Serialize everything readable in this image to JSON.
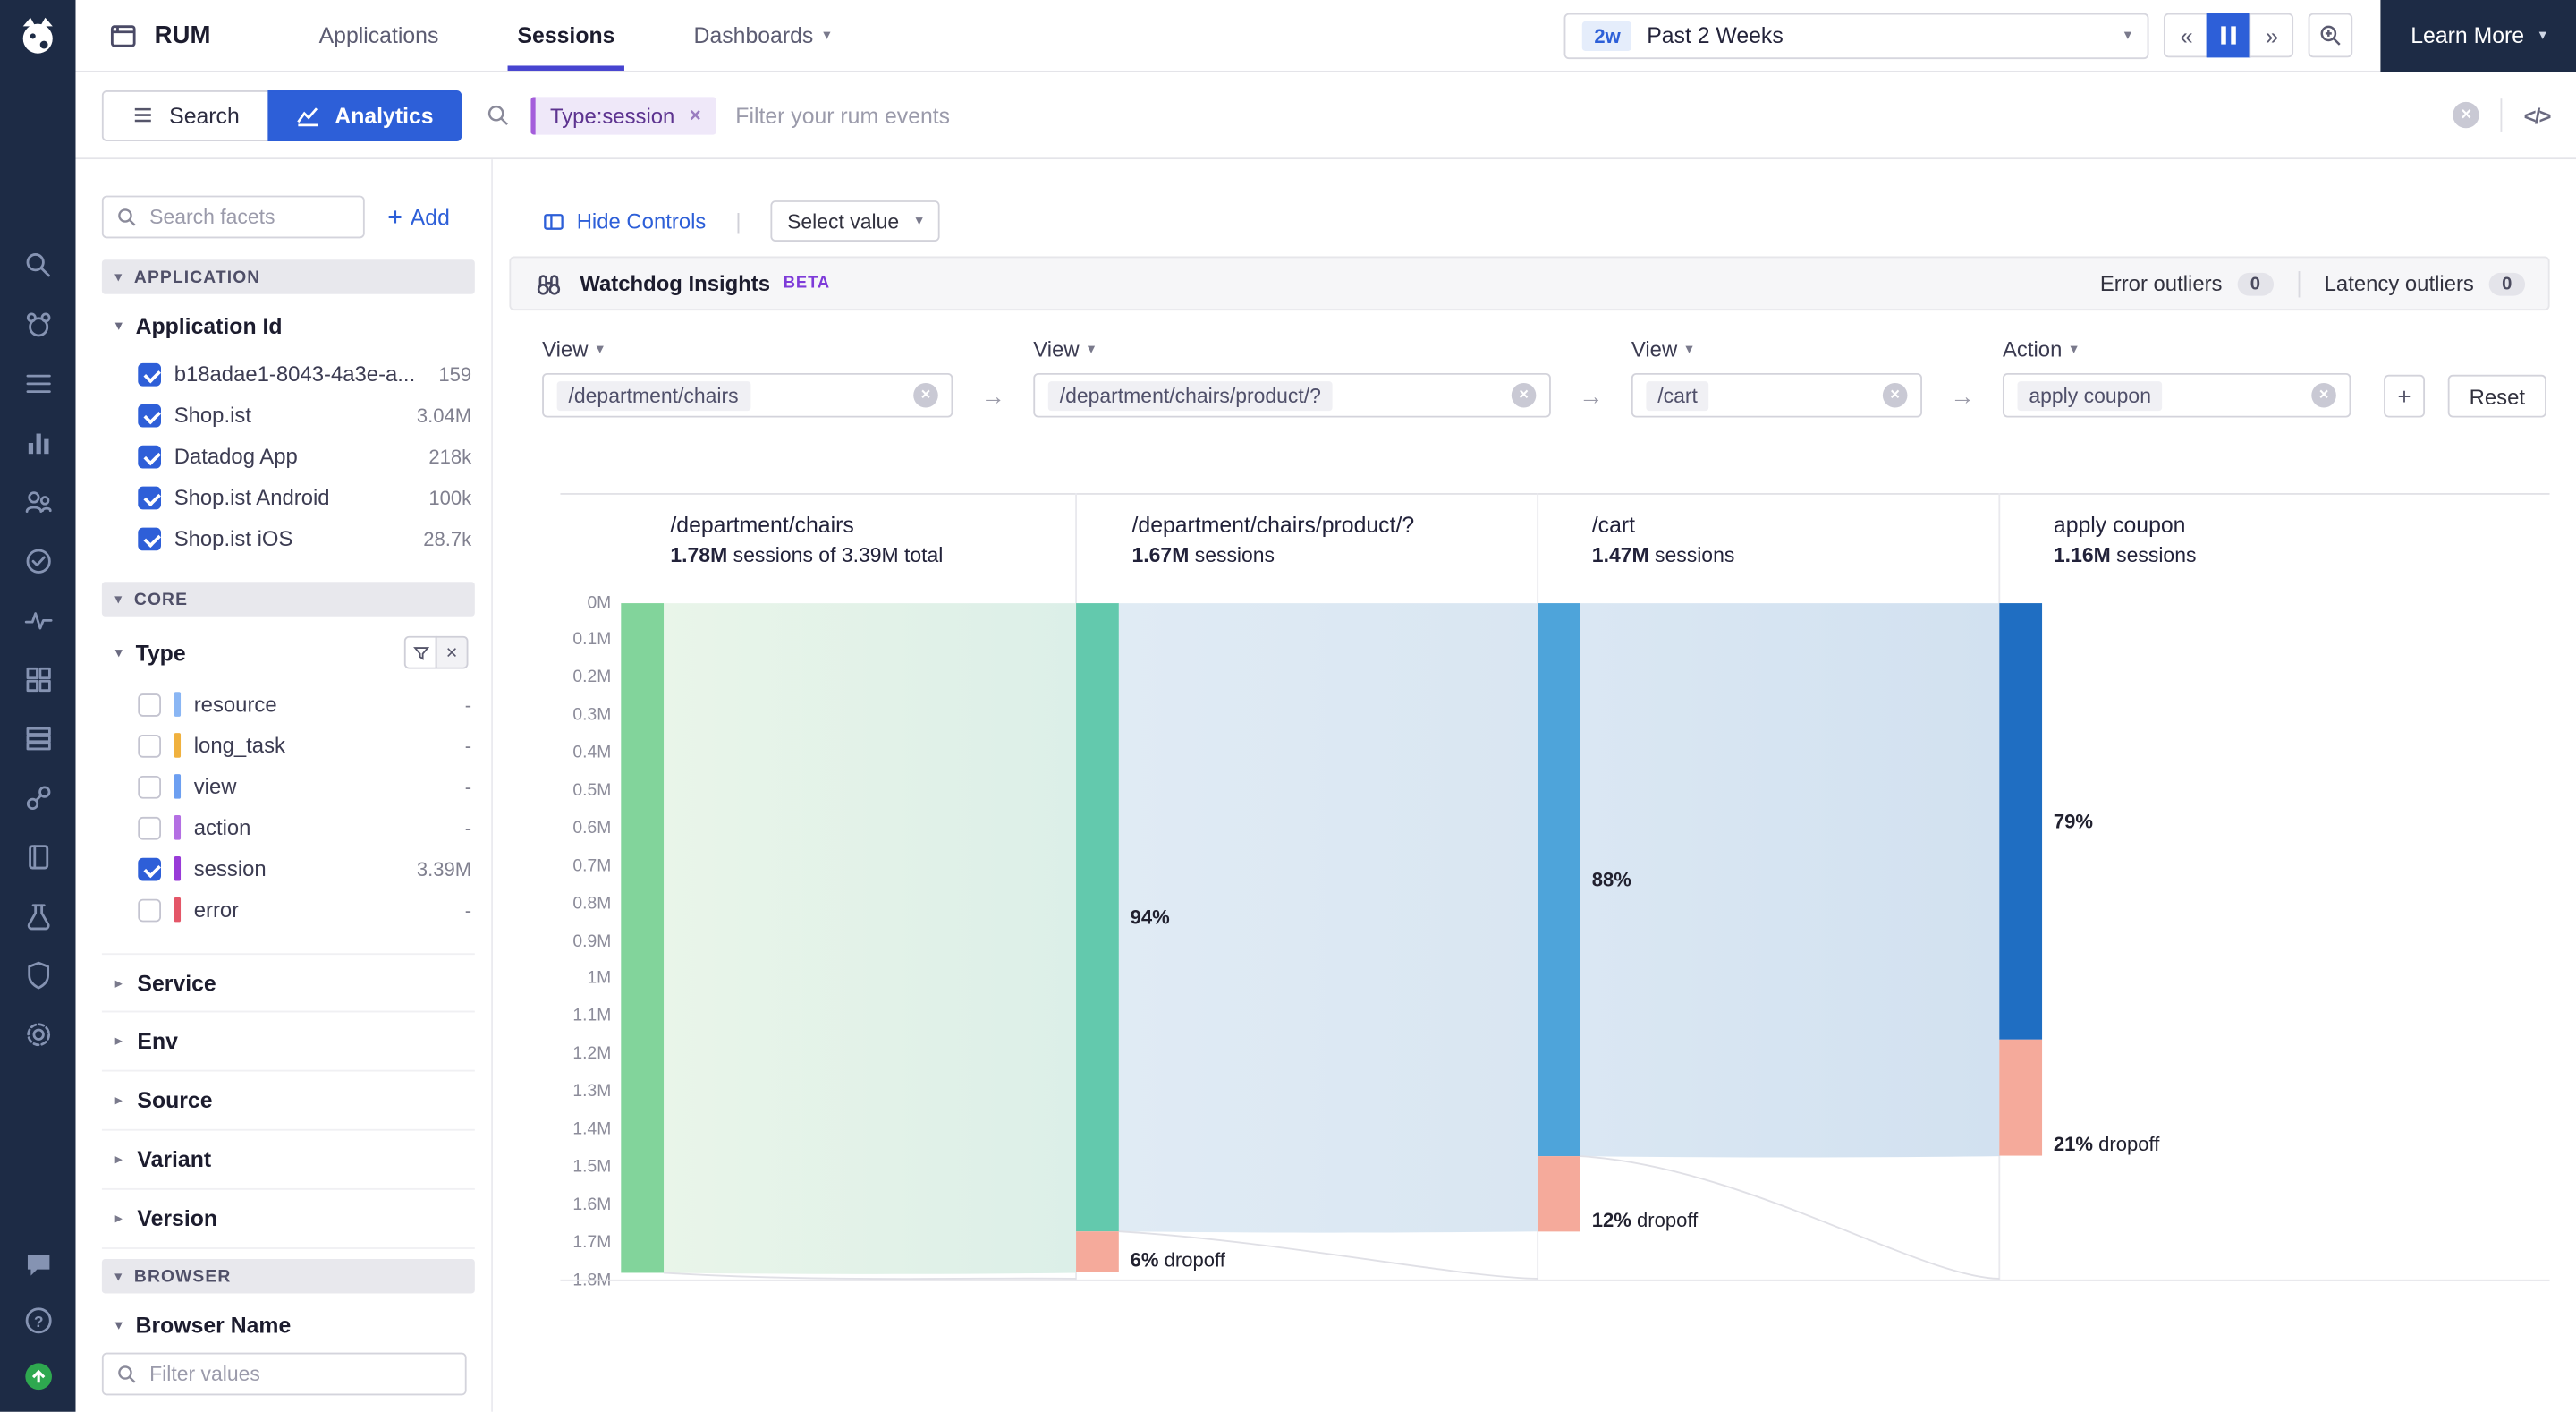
{
  "icons": {
    "caret_down": "▾",
    "chevron_right": "▸",
    "chevron_down": "▾",
    "close": "×",
    "plus": "+",
    "arrow_right": "→",
    "code": "</>",
    "rewind": "«",
    "forward": "»",
    "divider": "|",
    "help": "?"
  },
  "top_nav": {
    "product": "RUM",
    "items": [
      {
        "label": "Applications",
        "active": false
      },
      {
        "label": "Sessions",
        "active": true
      },
      {
        "label": "Dashboards",
        "active": false
      }
    ],
    "time_range": {
      "badge": "2w",
      "label": "Past 2 Weeks"
    },
    "learn_more_label": "Learn More"
  },
  "filter_bar": {
    "search_tab": "Search",
    "analytics_tab": "Analytics",
    "pill": "Type:session",
    "placeholder": "Filter your rum events"
  },
  "facet_panel": {
    "search_placeholder": "Search facets",
    "add_label": "Add",
    "application_header": "APPLICATION",
    "application_group": "Application Id",
    "application_items": [
      {
        "label": "b18adae1-8043-4a3e-a...",
        "count": "159",
        "checked": true
      },
      {
        "label": "Shop.ist",
        "count": "3.04M",
        "checked": true
      },
      {
        "label": "Datadog App",
        "count": "218k",
        "checked": true
      },
      {
        "label": "Shop.ist Android",
        "count": "100k",
        "checked": true
      },
      {
        "label": "Shop.ist iOS",
        "count": "28.7k",
        "checked": true
      }
    ],
    "core_header": "CORE",
    "type_group": "Type",
    "type_items": [
      {
        "label": "resource",
        "count": "-",
        "checked": false,
        "color": "#8ab6f4"
      },
      {
        "label": "long_task",
        "count": "-",
        "checked": false,
        "color": "#f0b13e"
      },
      {
        "label": "view",
        "count": "-",
        "checked": false,
        "color": "#6d9ff1"
      },
      {
        "label": "action",
        "count": "-",
        "checked": false,
        "color": "#b46fe3"
      },
      {
        "label": "session",
        "count": "3.39M",
        "checked": true,
        "color": "#993bd8"
      },
      {
        "label": "error",
        "count": "-",
        "checked": false,
        "color": "#e45668"
      }
    ],
    "collapsed_groups": [
      {
        "label": "Service"
      },
      {
        "label": "Env"
      },
      {
        "label": "Source"
      },
      {
        "label": "Variant"
      },
      {
        "label": "Version"
      }
    ],
    "browser_header": "BROWSER",
    "browser_group": "Browser Name",
    "filter_values_placeholder": "Filter values"
  },
  "controls": {
    "hide_controls": "Hide Controls",
    "select_value": "Select value"
  },
  "watchdog": {
    "title": "Watchdog Insights",
    "beta": "BETA",
    "error_outliers": "Error outliers",
    "error_count": "0",
    "latency_outliers": "Latency outliers",
    "latency_count": "0"
  },
  "funnel_builder": {
    "steps": [
      {
        "type": "View",
        "value": "/department/chairs"
      },
      {
        "type": "View",
        "value": "/department/chairs/product/?"
      },
      {
        "type": "View",
        "value": "/cart"
      },
      {
        "type": "Action",
        "value": "apply coupon"
      }
    ],
    "reset_label": "Reset"
  },
  "chart_data": {
    "type": "funnel",
    "columns": [
      {
        "title": "/department/chairs",
        "count": "1.78M",
        "count_suffix": " sessions of 3.39M total"
      },
      {
        "title": "/department/chairs/product/?",
        "count": "1.67M",
        "count_suffix": " sessions"
      },
      {
        "title": "/cart",
        "count": "1.47M",
        "count_suffix": " sessions"
      },
      {
        "title": "apply coupon",
        "count": "1.16M",
        "count_suffix": " sessions"
      }
    ],
    "values_m": [
      1.78,
      1.67,
      1.47,
      1.16
    ],
    "total_sessions": "3.39M",
    "conversion_labels": [
      "94%",
      "88%",
      "79%"
    ],
    "dropoff_pct": [
      6,
      12,
      21
    ],
    "dropoff_labels": [
      "6%",
      "12%",
      "21%"
    ],
    "dropoff_suffix": " dropoff",
    "y_ticks": [
      "0M",
      "0.1M",
      "0.2M",
      "0.3M",
      "0.4M",
      "0.5M",
      "0.6M",
      "0.7M",
      "0.8M",
      "0.9M",
      "1M",
      "1.1M",
      "1.2M",
      "1.3M",
      "1.4M",
      "1.5M",
      "1.6M",
      "1.7M",
      "1.8M"
    ],
    "ylim": [
      0,
      1.8
    ],
    "bar_colors": [
      "#82d49b",
      "#63c9ad",
      "#4ea4da",
      "#1f6ec2"
    ],
    "dropoff_color": "#f5aa9b"
  }
}
